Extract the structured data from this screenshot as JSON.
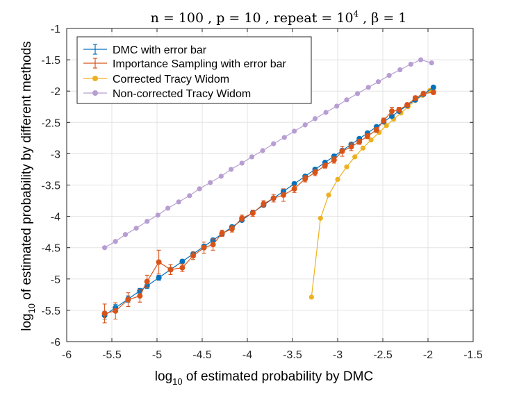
{
  "chart_data": {
    "type": "line",
    "title": "n = 100 , p = 10 , repeat = 10^4 , β = 1",
    "title_parts": {
      "prefix": "n = 100 , p = 10 , repeat = 10",
      "exponent": "4",
      "suffix": " , β = 1"
    },
    "xlabel": "log_10 of estimated probability by DMC",
    "xlabel_parts": {
      "base": "log",
      "sub": "10",
      "rest": " of estimated probability by DMC"
    },
    "ylabel": "log_10 of estimated probability by different methods",
    "ylabel_parts": {
      "base": "log",
      "sub": "10",
      "rest": " of estimated probability by different methods"
    },
    "xlim": [
      -6,
      -1.5
    ],
    "ylim": [
      -6,
      -1
    ],
    "xticks": [
      -6,
      -5.5,
      -5,
      -4.5,
      -4,
      -3.5,
      -3,
      -2.5,
      -2,
      -1.5
    ],
    "xtick_labels": [
      "-6",
      "-5.5",
      "-5",
      "-4.5",
      "-4",
      "-3.5",
      "-3",
      "-2.5",
      "-2",
      "-1.5"
    ],
    "yticks": [
      -6,
      -5.5,
      -5,
      -4.5,
      -4,
      -3.5,
      -3,
      -2.5,
      -2,
      -1.5,
      -1
    ],
    "ytick_labels": [
      "-6",
      "-5.5",
      "-5",
      "-4.5",
      "-4",
      "-3.5",
      "-3",
      "-2.5",
      "-2",
      "-1.5",
      "-1"
    ],
    "grid": true,
    "legend_position": "top-left",
    "legend": [
      "DMC with error bar",
      "Importance Sampling with error bar",
      "Corrected Tracy Widom",
      "Non-corrected Tracy Widom"
    ],
    "colors": {
      "dmc": "#0072BD",
      "is": "#D95319",
      "ctw": "#EDB120",
      "nctw": "#B79ED2"
    },
    "x": [
      -5.58,
      -5.46,
      -5.32,
      -5.19,
      -5.11,
      -4.98,
      -4.85,
      -4.72,
      -4.6,
      -4.48,
      -4.38,
      -4.28,
      -4.17,
      -4.06,
      -3.94,
      -3.82,
      -3.71,
      -3.6,
      -3.48,
      -3.36,
      -3.25,
      -3.14,
      -3.04,
      -2.95,
      -2.85,
      -2.76,
      -2.67,
      -2.57,
      -2.49,
      -2.4,
      -2.32,
      -2.23,
      -2.14,
      -2.05,
      -1.94
    ],
    "series": [
      {
        "name": "DMC with error bar",
        "values": [
          -5.58,
          -5.46,
          -5.32,
          -5.19,
          -5.11,
          -4.98,
          -4.85,
          -4.72,
          -4.6,
          -4.48,
          -4.38,
          -4.28,
          -4.17,
          -4.06,
          -3.94,
          -3.82,
          -3.71,
          -3.6,
          -3.48,
          -3.36,
          -3.25,
          -3.14,
          -3.04,
          -2.95,
          -2.85,
          -2.76,
          -2.67,
          -2.57,
          -2.49,
          -2.4,
          -2.32,
          -2.23,
          -2.14,
          -2.05,
          -1.94
        ],
        "error": [
          0.06,
          0.05,
          0.05,
          0.04,
          0.04,
          0.04,
          0.03,
          0.03,
          0.03,
          0.03,
          0.03,
          0.03,
          0.03,
          0.02,
          0.02,
          0.02,
          0.02,
          0.02,
          0.02,
          0.02,
          0.02,
          0.02,
          0.02,
          0.02,
          0.02,
          0.02,
          0.02,
          0.02,
          0.02,
          0.02,
          0.02,
          0.02,
          0.02,
          0.02,
          0.02
        ]
      },
      {
        "name": "Importance Sampling with error bar",
        "values": [
          -5.55,
          -5.51,
          -5.33,
          -5.27,
          -5.04,
          -4.73,
          -4.85,
          -4.82,
          -4.63,
          -4.5,
          -4.45,
          -4.27,
          -4.2,
          -4.03,
          -3.95,
          -3.8,
          -3.71,
          -3.66,
          -3.56,
          -3.4,
          -3.3,
          -3.19,
          -3.1,
          -2.96,
          -2.89,
          -2.81,
          -2.72,
          -2.62,
          -2.47,
          -2.32,
          -2.3,
          -2.22,
          -2.11,
          -2.04,
          -2.02
        ],
        "error": [
          0.15,
          0.13,
          0.11,
          0.1,
          0.1,
          0.19,
          0.08,
          0.06,
          0.06,
          0.09,
          0.09,
          0.05,
          0.05,
          0.05,
          0.05,
          0.05,
          0.06,
          0.1,
          0.06,
          0.05,
          0.05,
          0.04,
          0.05,
          0.08,
          0.06,
          0.04,
          0.04,
          0.04,
          0.04,
          0.06,
          0.04,
          0.03,
          0.03,
          0.03,
          0.03
        ]
      },
      {
        "name": "Corrected Tracy Widom",
        "x": [
          -3.29,
          -3.19,
          -3.1,
          -3.0,
          -2.9,
          -2.81,
          -2.72,
          -2.63,
          -2.54,
          -2.46,
          -2.38,
          -2.3,
          -2.22,
          -2.14,
          -2.06,
          -1.98,
          -1.94
        ],
        "values": [
          -5.29,
          -4.03,
          -3.66,
          -3.41,
          -3.21,
          -3.05,
          -2.91,
          -2.78,
          -2.66,
          -2.55,
          -2.45,
          -2.35,
          -2.25,
          -2.15,
          -2.07,
          -1.99,
          -1.95
        ]
      },
      {
        "name": "Non-corrected Tracy Widom",
        "x": [
          -5.58,
          -5.46,
          -5.35,
          -5.23,
          -5.11,
          -4.99,
          -4.88,
          -4.76,
          -4.64,
          -4.53,
          -4.41,
          -4.29,
          -4.18,
          -4.06,
          -3.95,
          -3.83,
          -3.71,
          -3.59,
          -3.48,
          -3.36,
          -3.25,
          -3.13,
          -3.01,
          -2.9,
          -2.78,
          -2.66,
          -2.55,
          -2.43,
          -2.31,
          -2.19,
          -2.08,
          -1.96
        ],
        "values": [
          -4.5,
          -4.4,
          -4.29,
          -4.19,
          -4.08,
          -3.98,
          -3.87,
          -3.77,
          -3.67,
          -3.56,
          -3.46,
          -3.36,
          -3.25,
          -3.15,
          -3.05,
          -2.95,
          -2.84,
          -2.74,
          -2.64,
          -2.54,
          -2.44,
          -2.34,
          -2.24,
          -2.14,
          -2.04,
          -1.94,
          -1.85,
          -1.75,
          -1.66,
          -1.57,
          -1.5,
          -1.55
        ]
      }
    ]
  }
}
